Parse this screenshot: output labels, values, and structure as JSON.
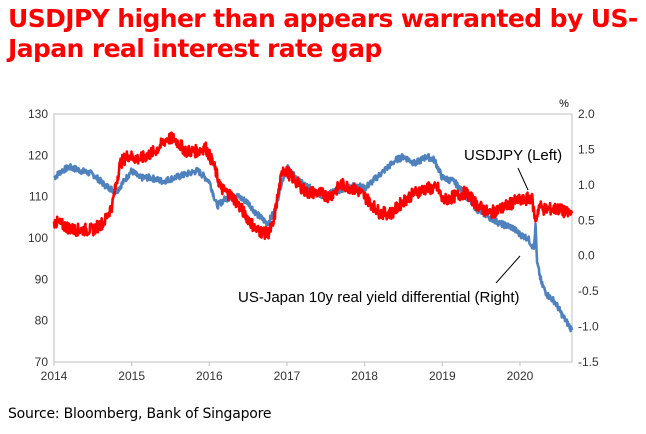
{
  "title": "USDJPY higher than appears warranted by US-Japan real interest rate gap",
  "source": "Source: Bloomberg, Bank of Singapore",
  "chart_data": {
    "type": "line",
    "x_ticks": [
      "2014",
      "2015",
      "2016",
      "2017",
      "2018",
      "2019",
      "2020"
    ],
    "left_axis": {
      "ylim": [
        70,
        130
      ],
      "ticks": [
        "130",
        "120",
        "110",
        "100",
        "90",
        "80",
        "70"
      ]
    },
    "right_axis": {
      "unit": "%",
      "ylim": [
        -1.5,
        2.0
      ],
      "ticks": [
        "2.0",
        "1.5",
        "1.0",
        "0.5",
        "0.0",
        "-0.5",
        "-1.0",
        "-1.5"
      ]
    },
    "xlim": [
      2014.0,
      2020.67
    ],
    "grid": false,
    "series": [
      {
        "name": "USDJPY (Left)",
        "axis": "left",
        "color": "#ff0000",
        "x": [
          2014.0,
          2014.25,
          2014.5,
          2014.65,
          2014.75,
          2014.85,
          2014.95,
          2015.1,
          2015.3,
          2015.45,
          2015.55,
          2015.7,
          2015.85,
          2015.95,
          2016.05,
          2016.15,
          2016.3,
          2016.45,
          2016.6,
          2016.75,
          2016.82,
          2016.88,
          2016.95,
          2017.1,
          2017.25,
          2017.4,
          2017.55,
          2017.7,
          2017.85,
          2017.95,
          2018.1,
          2018.2,
          2018.35,
          2018.5,
          2018.65,
          2018.8,
          2018.95,
          2019.0,
          2019.15,
          2019.3,
          2019.45,
          2019.6,
          2019.75,
          2019.85,
          2019.95,
          2020.05,
          2020.15,
          2020.2,
          2020.25,
          2020.3,
          2020.4,
          2020.5,
          2020.6,
          2020.67
        ],
        "y": [
          104,
          102,
          102,
          104,
          108,
          118,
          120,
          119,
          121,
          124,
          124,
          121,
          121,
          122,
          118,
          112,
          110,
          106,
          102,
          101,
          103,
          110,
          117,
          114,
          111,
          111,
          110,
          113,
          112,
          111,
          108,
          106,
          106,
          109,
          111,
          112,
          112,
          109,
          110,
          111,
          108,
          106,
          107,
          108,
          109,
          109,
          110,
          104,
          108,
          107,
          107,
          107,
          106,
          106
        ]
      },
      {
        "name": "US-Japan 10y real yield differential (Right)",
        "axis": "right",
        "color": "#4f81bd",
        "x": [
          2014.0,
          2014.1,
          2014.2,
          2014.35,
          2014.5,
          2014.65,
          2014.8,
          2014.9,
          2015.0,
          2015.1,
          2015.25,
          2015.4,
          2015.55,
          2015.7,
          2015.85,
          2016.0,
          2016.1,
          2016.2,
          2016.35,
          2016.5,
          2016.6,
          2016.75,
          2016.85,
          2016.92,
          2017.0,
          2017.15,
          2017.3,
          2017.45,
          2017.6,
          2017.75,
          2017.9,
          2018.0,
          2018.1,
          2018.25,
          2018.4,
          2018.5,
          2018.65,
          2018.8,
          2018.9,
          2019.0,
          2019.15,
          2019.3,
          2019.45,
          2019.6,
          2019.75,
          2019.9,
          2020.0,
          2020.1,
          2020.18,
          2020.2,
          2020.22,
          2020.28,
          2020.35,
          2020.45,
          2020.55,
          2020.67
        ],
        "y": [
          1.1,
          1.2,
          1.25,
          1.2,
          1.15,
          1.0,
          0.9,
          1.05,
          1.2,
          1.1,
          1.1,
          1.05,
          1.1,
          1.15,
          1.2,
          1.05,
          0.7,
          0.8,
          0.85,
          0.75,
          0.6,
          0.45,
          0.65,
          1.0,
          1.25,
          1.05,
          0.95,
          0.85,
          0.9,
          0.95,
          1.0,
          0.95,
          1.05,
          1.2,
          1.35,
          1.4,
          1.3,
          1.4,
          1.35,
          1.1,
          1.05,
          0.85,
          0.65,
          0.55,
          0.45,
          0.4,
          0.3,
          0.25,
          0.1,
          0.45,
          -0.1,
          -0.4,
          -0.55,
          -0.65,
          -0.85,
          -1.05
        ]
      }
    ],
    "annotations": [
      "USDJPY (Left)",
      "US-Japan 10y real yield differential (Right)"
    ]
  }
}
